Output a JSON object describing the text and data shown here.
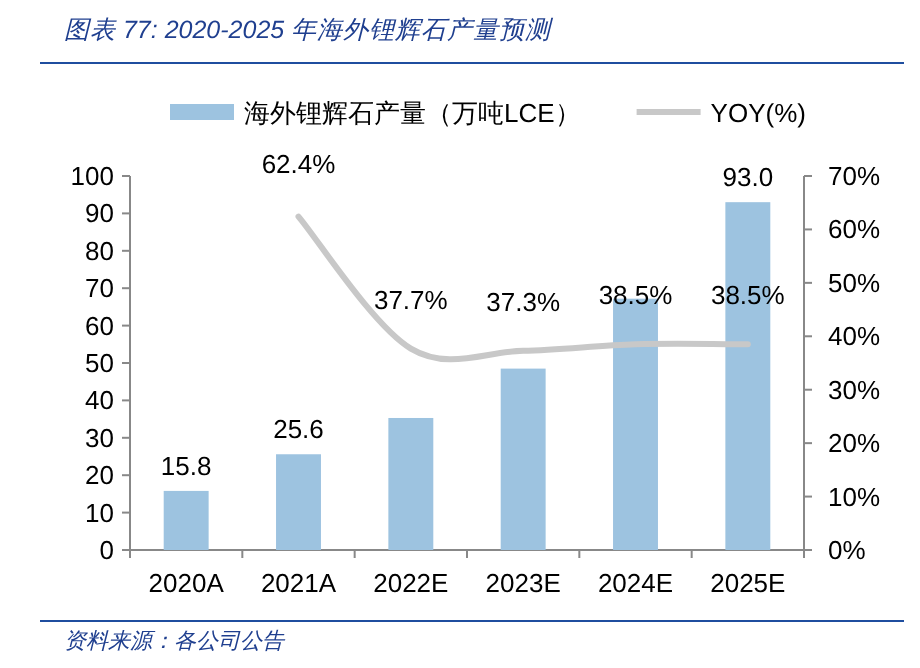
{
  "chart_data": {
    "type": "bar",
    "title": "图表 77:  2020-2025 年海外锂辉石产量预测",
    "categories": [
      "2020A",
      "2021A",
      "2022E",
      "2023E",
      "2024E",
      "2025E"
    ],
    "series": [
      {
        "name": "海外锂辉石产量（万吨LCE）",
        "color": "#9dc3e0",
        "values": [
          15.8,
          25.6,
          35.3,
          48.5,
          67.2,
          93.0
        ],
        "value_labels": [
          "15.8",
          "25.6",
          null,
          null,
          null,
          "93.0"
        ]
      },
      {
        "name": "YOY(%)",
        "type": "line",
        "axis": "y2",
        "color": "#c8c8c8",
        "values": [
          null,
          62.4,
          37.7,
          37.3,
          38.5,
          38.5
        ],
        "value_labels": [
          null,
          "62.4%",
          "37.7%",
          "37.3%",
          "38.5%",
          "38.5%"
        ]
      }
    ],
    "ylim": [
      0,
      100
    ],
    "yticks": [
      0,
      10,
      20,
      30,
      40,
      50,
      60,
      70,
      80,
      90,
      100
    ],
    "y2lim": [
      0,
      70
    ],
    "y2ticks": [
      {
        "value": 0,
        "label": "0%"
      },
      {
        "value": 10,
        "label": "10%"
      },
      {
        "value": 20,
        "label": "20%"
      },
      {
        "value": 30,
        "label": "30%"
      },
      {
        "value": 40,
        "label": "40%"
      },
      {
        "value": 50,
        "label": "50%"
      },
      {
        "value": 60,
        "label": "60%"
      },
      {
        "value": 70,
        "label": "70%"
      }
    ],
    "legend": "top",
    "grid": false,
    "annotations": [
      "资料来源：各公司公告"
    ]
  }
}
